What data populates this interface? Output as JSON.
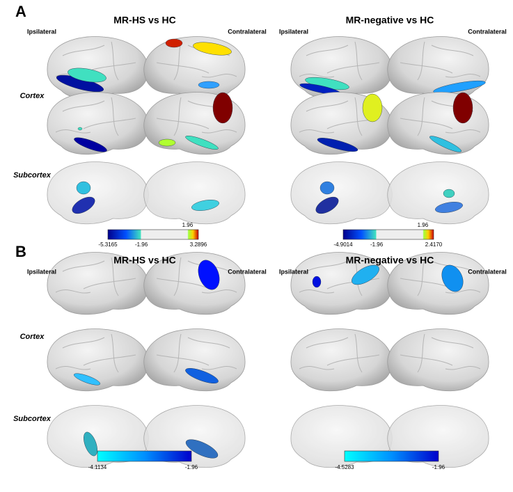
{
  "panels": [
    {
      "label": "A",
      "rows": [
        "Cortex",
        "Subcortex"
      ],
      "comparisons": [
        {
          "title": "MR-HS vs HC",
          "left": "Ipsilateral",
          "right": "Contralateral",
          "colorbar": {
            "min": "-5.3165",
            "mid": "-1.96",
            "max": "3.2896",
            "threshold": "1.96"
          }
        },
        {
          "title": "MR-negative vs HC",
          "left": "Ipsilateral",
          "right": "Contralateral",
          "colorbar": {
            "min": "-4.9014",
            "mid": "-1.96",
            "max": "2.4170",
            "threshold": "1.96"
          }
        }
      ]
    },
    {
      "label": "B",
      "rows": [
        "Cortex",
        "Subcortex"
      ],
      "comparisons": [
        {
          "title": "MR-HS vs HC",
          "left": "Ipsilateral",
          "right": "Contralateral",
          "colorbar": {
            "min": "-4.1134",
            "max": "-1.96"
          }
        },
        {
          "title": "MR-negative vs HC",
          "left": "Ipsilateral",
          "right": "Contralateral",
          "colorbar": {
            "min": "-4.5283",
            "max": "-1.96"
          }
        }
      ]
    }
  ]
}
